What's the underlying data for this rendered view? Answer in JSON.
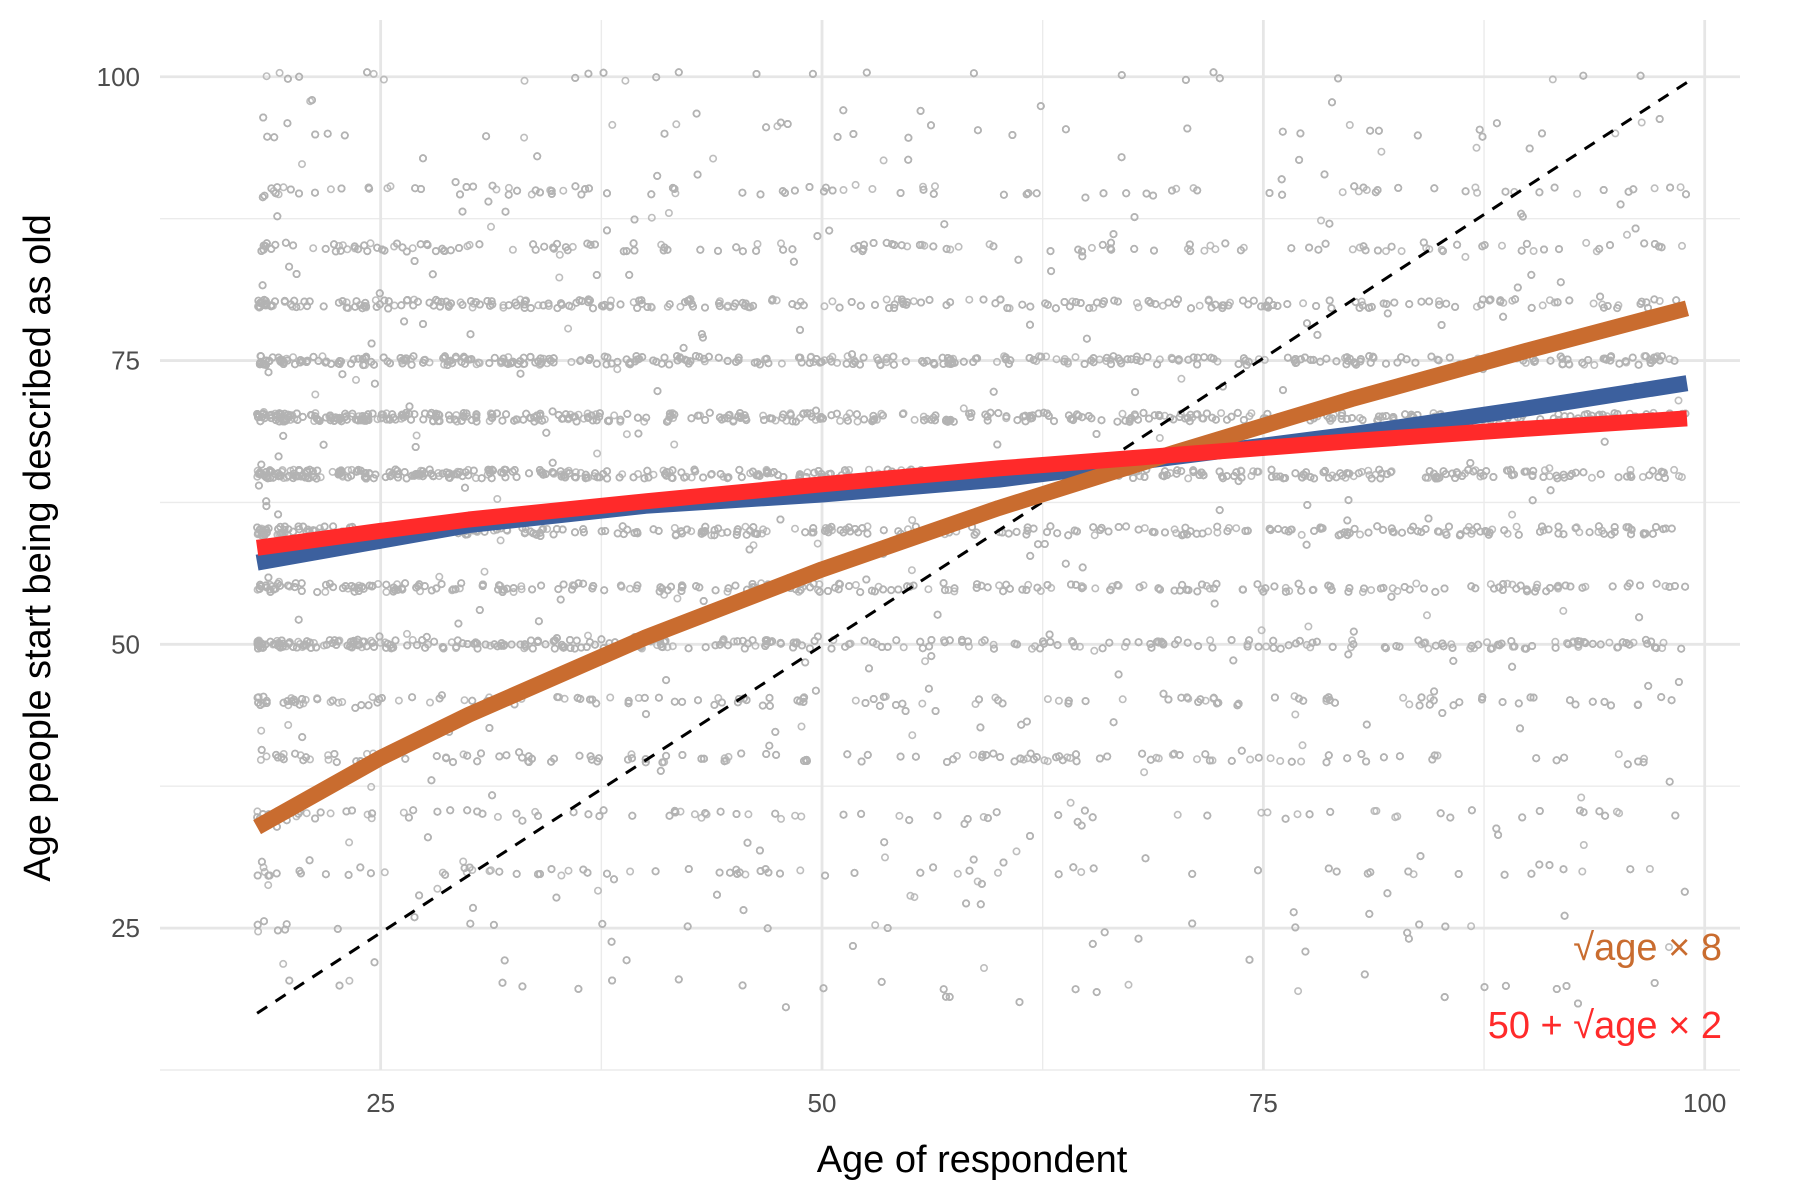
{
  "chart_data": {
    "type": "scatter",
    "title": "",
    "xlabel": "Age of respondent",
    "ylabel": "Age people start being described as old",
    "xlim": [
      12.5,
      102
    ],
    "ylim": [
      12.5,
      105
    ],
    "x_ticks": [
      25,
      50,
      75,
      100
    ],
    "y_ticks": [
      25,
      50,
      75,
      100
    ],
    "x_minor_ticks": [
      37.5,
      62.5,
      87.5
    ],
    "y_minor_ticks": [
      12.5,
      37.5,
      62.5,
      87.5
    ],
    "grid": true,
    "points": {
      "color": "#b3b3b3",
      "description": "jittered scatter of respondent answers, x from 18 to 99, y mostly clustered at multiples of 5 between 20 and 100",
      "x_range": [
        18,
        99
      ],
      "y_levels": [
        20,
        25,
        30,
        35,
        40,
        45,
        50,
        55,
        60,
        65,
        70,
        75,
        80,
        85,
        90,
        95,
        100
      ],
      "level_weights": [
        0.2,
        0.35,
        1.2,
        1.5,
        3.0,
        3.0,
        6.5,
        5.5,
        7.0,
        9.0,
        9.5,
        8.5,
        5.5,
        2.5,
        2.0,
        0.3,
        0.6
      ],
      "n": 9000
    },
    "series": [
      {
        "type": "line",
        "style": "dashed",
        "color": "#000000",
        "x": [
          18,
          99
        ],
        "y": [
          17.5,
          99.5
        ]
      },
      {
        "type": "line",
        "color": "#3c609e",
        "x": [
          18,
          30,
          40,
          50,
          60,
          70,
          80,
          90,
          99
        ],
        "y": [
          57.2,
          60.5,
          62.2,
          63.2,
          64.5,
          66.5,
          68.5,
          70.8,
          73.0
        ]
      },
      {
        "type": "line",
        "color": "#c96c2f",
        "x": [
          18,
          25,
          30,
          40,
          50,
          60,
          70,
          80,
          90,
          99
        ],
        "y": [
          33.9,
          40.0,
          43.8,
          50.6,
          56.6,
          62.0,
          66.9,
          71.6,
          75.9,
          79.6
        ]
      },
      {
        "type": "line",
        "color": "#ff2a2a",
        "x": [
          18,
          25,
          30,
          40,
          50,
          60,
          70,
          80,
          90,
          99
        ],
        "y": [
          58.5,
          60.0,
          61.0,
          62.6,
          64.1,
          65.5,
          66.7,
          67.9,
          69.0,
          69.9
        ]
      }
    ],
    "annotations": [
      {
        "label": "√age × 8",
        "color": "#c96c2f"
      },
      {
        "label": "50 + √age × 2",
        "color": "#ff2a2a"
      }
    ]
  }
}
